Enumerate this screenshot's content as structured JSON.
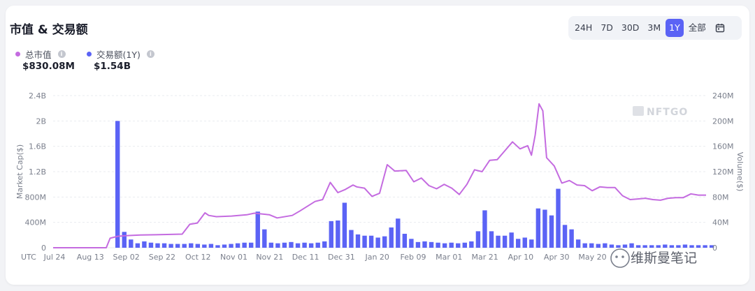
{
  "header": {
    "title": "市值 & 交易额"
  },
  "legend": {
    "market_cap": {
      "label": "总市值",
      "value": "$830.08M",
      "color": "#c46be0"
    },
    "volume": {
      "label": "交易额(1Y)",
      "value": "$1.54B",
      "color": "#5b63f5"
    }
  },
  "ranges": [
    "24H",
    "7D",
    "30D",
    "3M",
    "1Y",
    "全部"
  ],
  "active_range": "1Y",
  "watermark": "NFTGO",
  "overlay_text": "维斯曼笔记",
  "chart_data": {
    "type": "bar",
    "title": "市值 & 交易额",
    "ylabel": "Market Cap($)",
    "y2label": "Volume($)",
    "ylim": [
      0,
      2400000000
    ],
    "y2lim": [
      0,
      240000000
    ],
    "y_ticks": [
      "0",
      "400M",
      "800M",
      "1.2B",
      "1.6B",
      "2B",
      "2.4B"
    ],
    "y2_ticks": [
      "0",
      "40M",
      "80M",
      "120M",
      "160M",
      "200M",
      "240M"
    ],
    "x_prefix": "UTC",
    "x_ticks": [
      "Jul 24",
      "Aug 13",
      "Sep 02",
      "Sep 22",
      "Oct 12",
      "Nov 01",
      "Nov 21",
      "Dec 11",
      "Dec 31",
      "Jan 20",
      "Feb 09",
      "Mar 01",
      "Mar 21",
      "Apr 10",
      "Apr 30",
      "May 20"
    ],
    "grid": true,
    "series": [
      {
        "name": "交易额(1Y)",
        "type": "bar",
        "axis": "right",
        "values": [
          200,
          25,
          13,
          7,
          10,
          8,
          7,
          7,
          6,
          6,
          6,
          7,
          6,
          5,
          6,
          4,
          5,
          6,
          7,
          8,
          8,
          57,
          29,
          8,
          7,
          8,
          9,
          7,
          8,
          7,
          8,
          10,
          42,
          43,
          71,
          28,
          21,
          19,
          19,
          16,
          18,
          32,
          46,
          22,
          14,
          9,
          10,
          9,
          8,
          7,
          8,
          7,
          8,
          10,
          26,
          59,
          26,
          19,
          19,
          24,
          14,
          16,
          13,
          62,
          60,
          51,
          93,
          36,
          29,
          13,
          7,
          7,
          6,
          7,
          5,
          4,
          5,
          7,
          4,
          4,
          4,
          4,
          5,
          4,
          4,
          5,
          4,
          4,
          4,
          4
        ]
      },
      {
        "name": "总市值",
        "type": "line",
        "axis": "left",
        "points": [
          [
            0,
            0
          ],
          [
            10,
            0
          ],
          [
            14,
            0
          ],
          [
            15,
            150
          ],
          [
            17,
            180
          ],
          [
            19,
            190
          ],
          [
            23,
            200
          ],
          [
            27,
            205
          ],
          [
            31,
            210
          ],
          [
            34,
            215
          ],
          [
            36,
            370
          ],
          [
            38,
            390
          ],
          [
            40,
            550
          ],
          [
            41,
            510
          ],
          [
            43,
            490
          ],
          [
            47,
            500
          ],
          [
            51,
            520
          ],
          [
            53,
            545
          ],
          [
            57,
            520
          ],
          [
            59,
            470
          ],
          [
            63,
            510
          ],
          [
            65,
            580
          ],
          [
            69,
            730
          ],
          [
            71,
            760
          ],
          [
            73,
            1030
          ],
          [
            75,
            870
          ],
          [
            77,
            920
          ],
          [
            79,
            990
          ],
          [
            80,
            960
          ],
          [
            82,
            940
          ],
          [
            84,
            810
          ],
          [
            86,
            860
          ],
          [
            88,
            1310
          ],
          [
            90,
            1210
          ],
          [
            93,
            1220
          ],
          [
            95,
            1040
          ],
          [
            97,
            1100
          ],
          [
            99,
            980
          ],
          [
            101,
            930
          ],
          [
            103,
            1000
          ],
          [
            105,
            940
          ],
          [
            107,
            840
          ],
          [
            109,
            1000
          ],
          [
            111,
            1230
          ],
          [
            113,
            1200
          ],
          [
            115,
            1380
          ],
          [
            117,
            1390
          ],
          [
            119,
            1530
          ],
          [
            121,
            1670
          ],
          [
            123,
            1560
          ],
          [
            125,
            1610
          ],
          [
            126,
            1460
          ],
          [
            127,
            1780
          ],
          [
            128,
            2270
          ],
          [
            129,
            2160
          ],
          [
            130,
            1420
          ],
          [
            132,
            1290
          ],
          [
            134,
            1020
          ],
          [
            136,
            1060
          ],
          [
            138,
            990
          ],
          [
            140,
            980
          ],
          [
            142,
            900
          ],
          [
            144,
            960
          ],
          [
            146,
            950
          ],
          [
            148,
            950
          ],
          [
            150,
            820
          ],
          [
            152,
            760
          ],
          [
            154,
            770
          ],
          [
            156,
            780
          ],
          [
            158,
            760
          ],
          [
            160,
            750
          ],
          [
            162,
            780
          ],
          [
            164,
            790
          ],
          [
            166,
            790
          ],
          [
            168,
            850
          ],
          [
            170,
            830
          ],
          [
            172,
            830
          ]
        ]
      }
    ]
  }
}
